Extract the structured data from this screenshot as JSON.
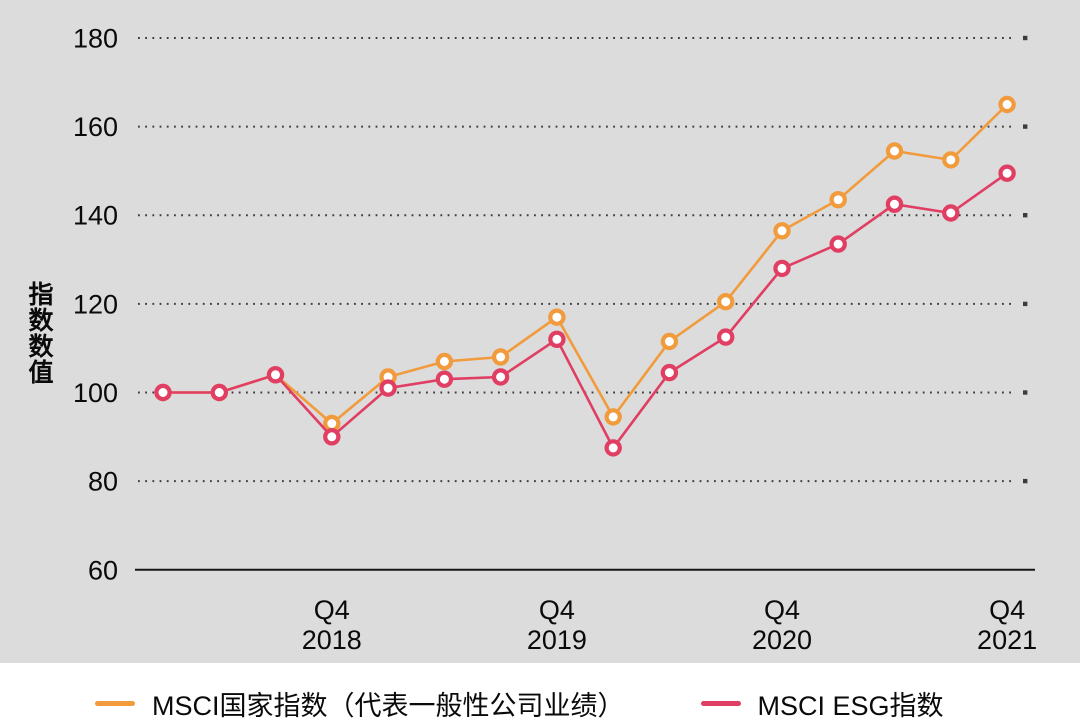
{
  "chart_data": {
    "type": "line",
    "title": "",
    "ylabel": "指数数值",
    "xlabel": "",
    "x": [
      "2018 Q1",
      "2018 Q2",
      "2018 Q3",
      "2018 Q4",
      "2019 Q1",
      "2019 Q2",
      "2019 Q3",
      "2019 Q4",
      "2020 Q1",
      "2020 Q2",
      "2020 Q3",
      "2020 Q4",
      "2021 Q1",
      "2021 Q2",
      "2021 Q3",
      "2021 Q4"
    ],
    "x_tick_labels": [
      {
        "index": 3,
        "line1": "Q4",
        "line2": "2018"
      },
      {
        "index": 7,
        "line1": "Q4",
        "line2": "2019"
      },
      {
        "index": 11,
        "line1": "Q4",
        "line2": "2020"
      },
      {
        "index": 15,
        "line1": "Q4",
        "line2": "2021"
      }
    ],
    "y_ticks": [
      180,
      160,
      140,
      120,
      100,
      80,
      60
    ],
    "ylim": [
      60,
      185
    ],
    "grid": "dotted-horizontal",
    "legend_position": "bottom",
    "series": [
      {
        "name": "MSCI国家指数（代表一般性公司业绩）",
        "color": "#F19B3C",
        "marker": "open-circle",
        "values": [
          100,
          100,
          104,
          93,
          103.5,
          107,
          108,
          117,
          94.5,
          111.5,
          120.5,
          136.5,
          143.5,
          154.5,
          152.5,
          165
        ]
      },
      {
        "name": "MSCI ESG指数",
        "color": "#E03E63",
        "marker": "open-circle",
        "values": [
          100,
          100,
          104,
          90,
          101,
          103,
          103.5,
          112,
          87.5,
          104.5,
          112.5,
          128,
          133.5,
          142.5,
          140.5,
          149.5
        ]
      }
    ]
  },
  "legend": {
    "items": [
      {
        "label": "MSCI国家指数（代表一般性公司业绩）",
        "color": "#F19B3C"
      },
      {
        "label": "MSCI ESG指数",
        "color": "#E03E63"
      }
    ]
  },
  "colors": {
    "panel_background": "#DCDCDC",
    "legend_background": "#FFFFFF",
    "grid": "#3C3C3C",
    "axis": "#161616",
    "text": "#0A0A0A",
    "marker_fill": "#FFFFFF"
  }
}
